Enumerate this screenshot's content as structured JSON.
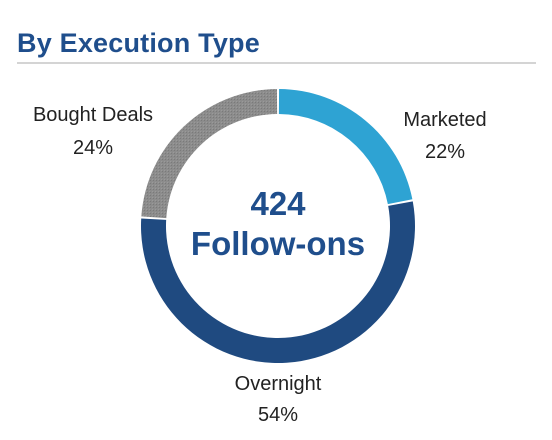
{
  "header": {
    "title": "By Execution Type"
  },
  "center": {
    "count": "424",
    "label": "Follow-ons"
  },
  "colors": {
    "marketed": "#2ea3d3",
    "overnight": "#1f4a80",
    "bought_deals": "#8c8c8c",
    "title": "#1f4e8c"
  },
  "chart_data": {
    "type": "pie",
    "title": "By Execution Type",
    "categories": [
      "Marketed",
      "Overnight",
      "Bought Deals"
    ],
    "values": [
      22,
      54,
      24
    ],
    "value_labels": [
      "22%",
      "54%",
      "24%"
    ],
    "donut": true,
    "center_label": "424 Follow-ons",
    "start": "top",
    "direction": "clockwise"
  }
}
